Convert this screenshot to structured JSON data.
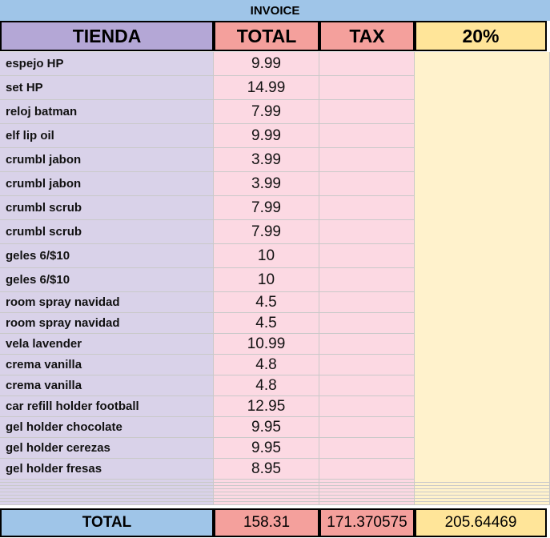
{
  "header": {
    "title": "INVOICE"
  },
  "table": {
    "columns": [
      "TIENDA",
      "TOTAL",
      "TAX",
      "20%"
    ],
    "rows": [
      [
        "espejo HP",
        9.99
      ],
      [
        "set HP",
        14.99
      ],
      [
        "reloj batman",
        7.99
      ],
      [
        "elf lip oil",
        9.99
      ],
      [
        "crumbl jabon",
        3.99
      ],
      [
        "crumbl jabon",
        3.99
      ],
      [
        "crumbl scrub",
        7.99
      ],
      [
        "crumbl scrub",
        7.99
      ],
      [
        "geles 6/$10",
        10
      ],
      [
        "geles 6/$10",
        10
      ],
      [
        "room spray navidad",
        4.5
      ],
      [
        "room spray navidad",
        4.5
      ],
      [
        "vela lavender",
        10.99
      ],
      [
        "crema vanilla",
        4.8
      ],
      [
        "crema vanilla",
        4.8
      ],
      [
        "car refill holder football",
        12.95
      ],
      [
        "gel holder chocolate",
        9.95
      ],
      [
        "gel holder cerezas",
        9.95
      ],
      [
        "gel holder fresas",
        8.95
      ]
    ],
    "footer": [
      "TOTAL",
      158.31,
      171.370575,
      205.64469
    ]
  }
}
